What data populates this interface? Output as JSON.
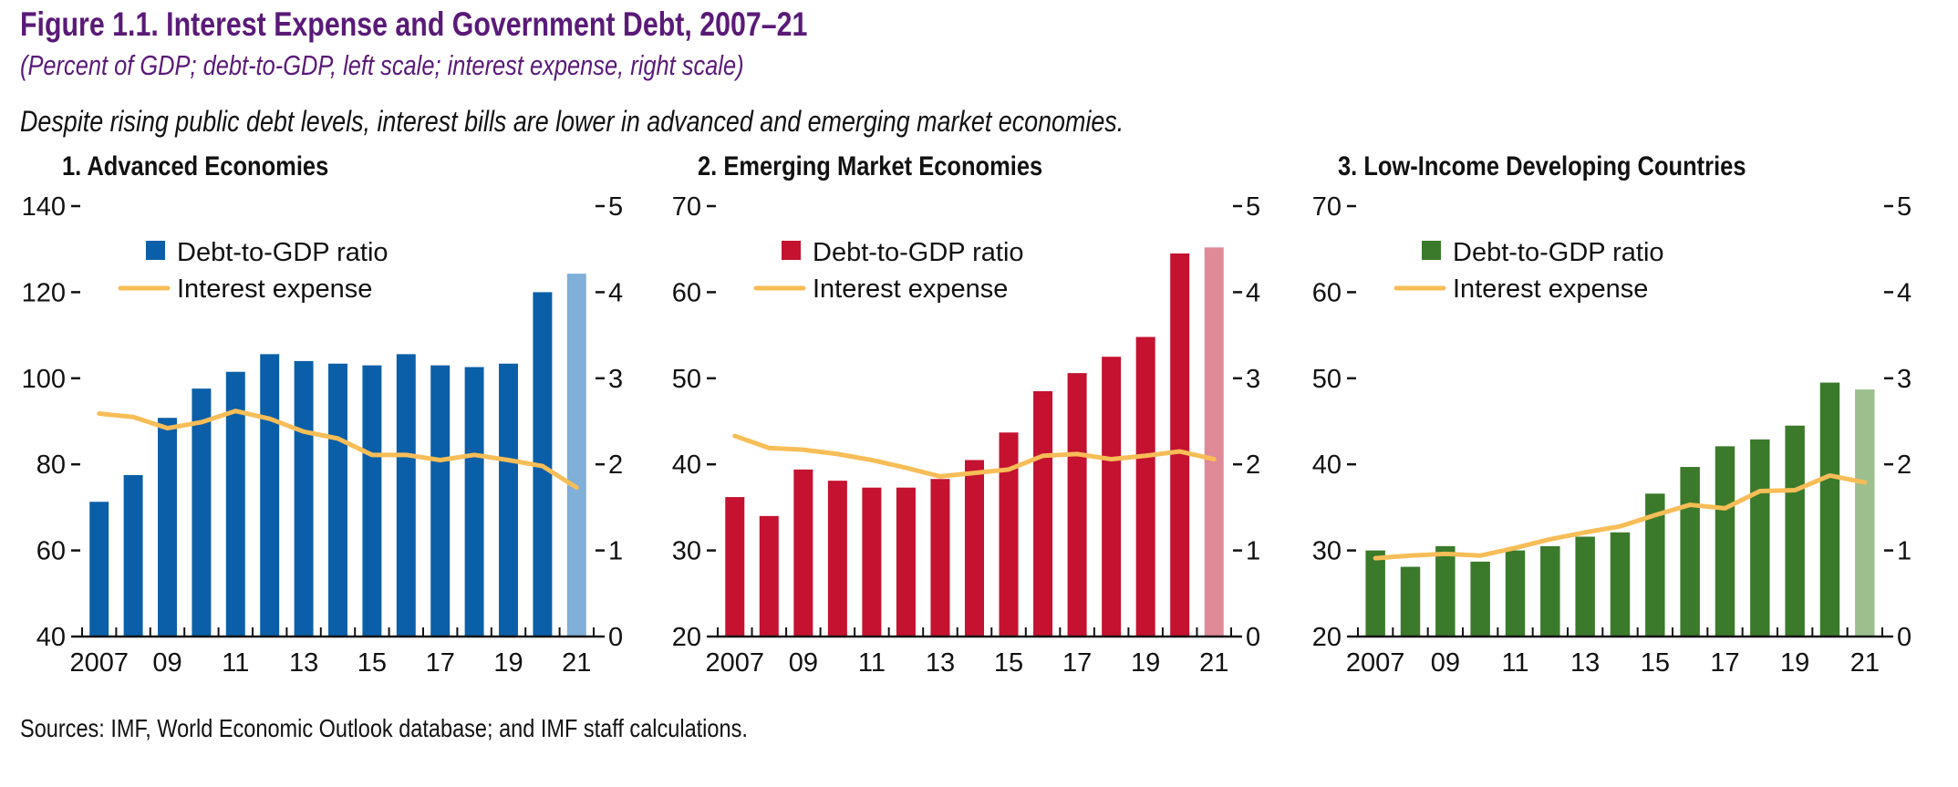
{
  "figure": {
    "title": "Figure 1.1. Interest Expense and Government Debt, 2007–21",
    "subtitle": "(Percent of GDP; debt-to-GDP, left scale; interest expense, right scale)",
    "caption": "Despite rising public debt levels, interest bills are lower in advanced and emerging market economies.",
    "sources": "Sources: IMF, World Economic Outlook database; and IMF staff calculations."
  },
  "colors": {
    "line": "#f7bd57",
    "advanced": "#0a5fa8",
    "advanced_proj": "#80afd8",
    "emerging": "#c41230",
    "emerging_proj": "#e08a98",
    "lidc": "#3b7a2b",
    "lidc_proj": "#9dbf8e"
  },
  "chart_data": [
    {
      "type": "bar",
      "title": "1. Advanced Economies",
      "categories": [
        "2007",
        "2008",
        "2009",
        "2010",
        "2011",
        "2012",
        "2013",
        "2014",
        "2015",
        "2016",
        "2017",
        "2018",
        "2019",
        "2020",
        "2021"
      ],
      "x_tick_labels": [
        "2007",
        "09",
        "11",
        "13",
        "15",
        "17",
        "19",
        "21"
      ],
      "ylim": [
        40,
        140
      ],
      "yticks": [
        40,
        60,
        80,
        100,
        120,
        140
      ],
      "y2lim": [
        0,
        5
      ],
      "y2ticks": [
        0,
        1,
        2,
        3,
        4,
        5
      ],
      "legend": [
        "Debt-to-GDP ratio",
        "Interest expense"
      ],
      "legend_position": "top-left",
      "projection_from": "2021",
      "series": [
        {
          "name": "Debt-to-GDP ratio",
          "axis": "left",
          "type": "bar",
          "values": [
            71.3,
            77.5,
            90.8,
            97.6,
            101.5,
            105.6,
            104.0,
            103.4,
            103.0,
            105.6,
            103.0,
            102.6,
            103.4,
            120.0,
            124.3
          ]
        },
        {
          "name": "Interest expense",
          "axis": "right",
          "type": "line",
          "values": [
            2.59,
            2.55,
            2.42,
            2.49,
            2.62,
            2.53,
            2.38,
            2.3,
            2.11,
            2.11,
            2.05,
            2.11,
            2.05,
            1.98,
            1.73
          ]
        }
      ]
    },
    {
      "type": "bar",
      "title": "2. Emerging Market Economies",
      "categories": [
        "2007",
        "2008",
        "2009",
        "2010",
        "2011",
        "2012",
        "2013",
        "2014",
        "2015",
        "2016",
        "2017",
        "2018",
        "2019",
        "2020",
        "2021"
      ],
      "x_tick_labels": [
        "2007",
        "09",
        "11",
        "13",
        "15",
        "17",
        "19",
        "21"
      ],
      "ylim": [
        20,
        70
      ],
      "yticks": [
        20,
        30,
        40,
        50,
        60,
        70
      ],
      "y2lim": [
        0,
        5
      ],
      "y2ticks": [
        0,
        1,
        2,
        3,
        4,
        5
      ],
      "legend": [
        "Debt-to-GDP ratio",
        "Interest expense"
      ],
      "legend_position": "top-left",
      "projection_from": "2021",
      "series": [
        {
          "name": "Debt-to-GDP ratio",
          "axis": "left",
          "type": "bar",
          "values": [
            36.2,
            34.0,
            39.4,
            38.1,
            37.3,
            37.3,
            38.3,
            40.5,
            43.7,
            48.5,
            50.6,
            52.5,
            54.8,
            64.5,
            65.2
          ]
        },
        {
          "name": "Interest expense",
          "axis": "right",
          "type": "line",
          "values": [
            2.33,
            2.19,
            2.17,
            2.12,
            2.05,
            1.96,
            1.86,
            1.9,
            1.94,
            2.1,
            2.12,
            2.06,
            2.1,
            2.15,
            2.06
          ]
        }
      ]
    },
    {
      "type": "bar",
      "title": "3. Low-Income Developing Countries",
      "categories": [
        "2007",
        "2008",
        "2009",
        "2010",
        "2011",
        "2012",
        "2013",
        "2014",
        "2015",
        "2016",
        "2017",
        "2018",
        "2019",
        "2020",
        "2021"
      ],
      "x_tick_labels": [
        "2007",
        "09",
        "11",
        "13",
        "15",
        "17",
        "19",
        "21"
      ],
      "ylim": [
        20,
        70
      ],
      "yticks": [
        20,
        30,
        40,
        50,
        60,
        70
      ],
      "y2lim": [
        0,
        5
      ],
      "y2ticks": [
        0,
        1,
        2,
        3,
        4,
        5
      ],
      "legend": [
        "Debt-to-GDP ratio",
        "Interest expense"
      ],
      "legend_position": "top-left",
      "projection_from": "2021",
      "series": [
        {
          "name": "Debt-to-GDP ratio",
          "axis": "left",
          "type": "bar",
          "values": [
            30.0,
            28.1,
            30.5,
            28.7,
            30.0,
            30.5,
            31.6,
            32.1,
            36.6,
            39.7,
            42.1,
            42.9,
            44.5,
            49.5,
            48.7
          ]
        },
        {
          "name": "Interest expense",
          "axis": "right",
          "type": "line",
          "values": [
            0.91,
            0.94,
            0.96,
            0.94,
            1.03,
            1.13,
            1.21,
            1.28,
            1.41,
            1.53,
            1.49,
            1.69,
            1.7,
            1.87,
            1.79
          ]
        }
      ]
    }
  ]
}
